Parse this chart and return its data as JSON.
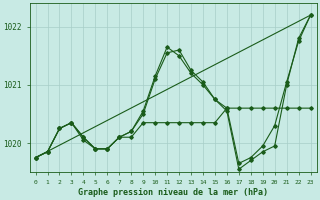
{
  "title": "Graphe pression niveau de la mer (hPa)",
  "bg_color": "#c8eae4",
  "grid_color": "#a8cec8",
  "line_color": "#1a5c1a",
  "ylim": [
    1019.5,
    1022.4
  ],
  "yticks": [
    1020,
    1021,
    1022
  ],
  "xlim": [
    -0.5,
    23.5
  ],
  "series": [
    {
      "x": [
        0,
        1,
        2,
        3,
        4,
        5,
        6,
        7,
        8,
        9,
        10,
        11,
        12,
        13,
        14,
        15,
        16,
        17,
        18,
        19,
        20,
        21,
        22,
        23
      ],
      "y": [
        1019.75,
        1019.85,
        1020.25,
        1020.35,
        1020.1,
        1019.9,
        1019.9,
        1020.1,
        1020.1,
        1020.35,
        1020.35,
        1020.35,
        1020.35,
        1020.35,
        1020.35,
        1020.35,
        1020.6,
        1020.6,
        1020.6,
        1020.6,
        1020.6,
        1020.6,
        1020.6,
        1020.6
      ],
      "marker": true,
      "linewidth": 0.8
    },
    {
      "x": [
        0,
        23
      ],
      "y": [
        1019.75,
        1022.2
      ],
      "marker": false,
      "linewidth": 0.8
    },
    {
      "x": [
        0,
        1,
        2,
        3,
        4,
        5,
        6,
        7,
        8,
        9,
        10,
        11,
        12,
        13,
        14,
        15,
        16,
        17,
        18,
        19,
        20,
        21,
        22,
        23
      ],
      "y": [
        1019.75,
        1019.85,
        1020.25,
        1020.35,
        1020.1,
        1019.9,
        1019.9,
        1020.1,
        1020.2,
        1020.5,
        1021.1,
        1021.55,
        1021.6,
        1021.25,
        1021.05,
        1020.75,
        1020.6,
        1019.65,
        1019.75,
        1019.95,
        1020.3,
        1021.05,
        1021.75,
        1022.2
      ],
      "marker": true,
      "linewidth": 0.8
    },
    {
      "x": [
        0,
        1,
        2,
        3,
        4,
        5,
        6,
        7,
        8,
        9,
        10,
        11,
        12,
        13,
        14,
        15,
        16,
        17,
        18,
        19,
        20,
        21,
        22,
        23
      ],
      "y": [
        1019.75,
        1019.85,
        1020.25,
        1020.35,
        1020.05,
        1019.9,
        1019.9,
        1020.1,
        1020.2,
        1020.55,
        1021.15,
        1021.65,
        1021.5,
        1021.2,
        1021.0,
        1020.75,
        1020.55,
        1019.55,
        1019.7,
        1019.85,
        1019.95,
        1021.0,
        1021.8,
        1022.2
      ],
      "marker": true,
      "linewidth": 0.8
    }
  ]
}
